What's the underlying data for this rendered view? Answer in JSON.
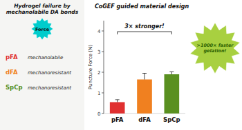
{
  "chart_data": {
    "type": "bar",
    "title": "CoGEF guided material design",
    "categories": [
      "pFA",
      "dFA",
      "SpCp"
    ],
    "values": [
      0.55,
      1.65,
      1.9
    ],
    "errors": [
      0.12,
      0.3,
      0.12
    ],
    "colors": [
      "#e03030",
      "#f08020",
      "#5a9020"
    ],
    "ylabel": "Puncture Force (N)",
    "ylim": [
      0,
      4.5
    ],
    "yticks": [
      0,
      1,
      2,
      3,
      4
    ],
    "grid": false,
    "annotations": [
      {
        "text": "Hydrogel failure by\nmechanolabile DA bonds"
      },
      {
        "text": "Force",
        "color": "#00cccc"
      },
      {
        "text": "pFA",
        "color": "#e03030"
      },
      {
        "text": "mechanolabile"
      },
      {
        "text": "dFA",
        "color": "#f08020"
      },
      {
        "text": "mechanoresistant"
      },
      {
        "text": "SpCp",
        "color": "#5a9020"
      },
      {
        "text": "mechanoresistant"
      },
      {
        "text": "3× stronger!"
      },
      {
        "text": ">1000× faster\ngelation!",
        "color": "#a8d040"
      }
    ]
  }
}
